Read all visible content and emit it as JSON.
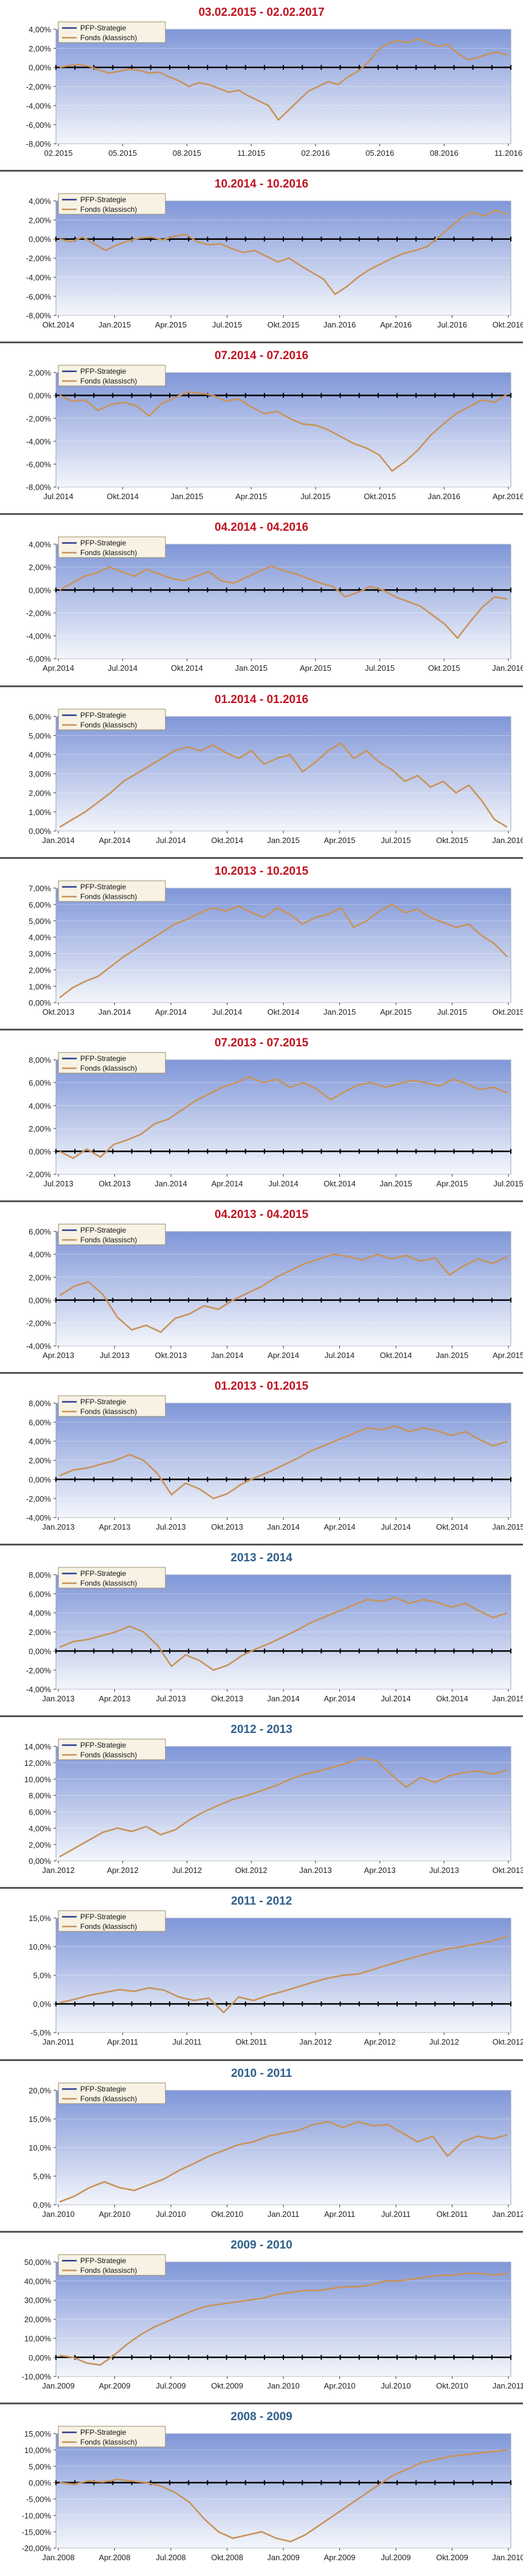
{
  "colors": {
    "title_red": "#c0121f",
    "title_blue": "#2e5f8a",
    "plot_top": "#7f96d8",
    "plot_bottom": "#f4f6fb",
    "series_strategy": "#2c3d8f",
    "series_fund": "#c8935a",
    "axis": "#000000",
    "separator": "#555555"
  },
  "chart_data": [
    {
      "type": "line",
      "title": "03.02.2015 - 02.02.2017",
      "title_color": "red",
      "y_labels": [
        "4,00%",
        "2,00%",
        "0,00%",
        "-2,00%",
        "-4,00%",
        "-6,00%",
        "-8,00%"
      ],
      "ylim": [
        -8,
        4
      ],
      "x_labels": [
        "02.2015",
        "05.2015",
        "08.2015",
        "11.2015",
        "02.2016",
        "05.2016",
        "08.2016",
        "11.2016"
      ],
      "legend": [
        "PFP-Strategie",
        "Fonds (klassisch)"
      ],
      "legend_position": "top-left",
      "series": [
        {
          "name": "Fonds (klassisch)",
          "values": [
            0,
            0.2,
            0.3,
            0.1,
            -0.3,
            -0.6,
            -0.4,
            -0.2,
            -0.3,
            -0.6,
            -0.5,
            -1,
            -1.4,
            -2,
            -1.6,
            -1.8,
            -2.2,
            -2.6,
            -2.4,
            -3,
            -3.5,
            -4,
            -5.5,
            -4.5,
            -3.5,
            -2.5,
            -2,
            -1.5,
            -1.8,
            -1,
            -0.4,
            0.5,
            1.8,
            2.5,
            2.8,
            2.6,
            3,
            2.6,
            2.2,
            2.4,
            1.5,
            0.8,
            1,
            1.4,
            1.6,
            1.3
          ]
        }
      ]
    },
    {
      "type": "line",
      "title": "10.2014 - 10.2016",
      "title_color": "red",
      "y_labels": [
        "4,00%",
        "2,00%",
        "0,00%",
        "-2,00%",
        "-4,00%",
        "-6,00%",
        "-8,00%"
      ],
      "ylim": [
        -8,
        4
      ],
      "x_labels": [
        "Okt.2014",
        "Jan.2015",
        "Apr.2015",
        "Jul.2015",
        "Okt.2015",
        "Jan.2016",
        "Apr.2016",
        "Jul.2016",
        "Okt.2016"
      ],
      "legend": [
        "PFP-Strategie",
        "Fonds (klassisch)"
      ],
      "legend_position": "top-left",
      "series": [
        {
          "name": "Fonds (klassisch)",
          "values": [
            0,
            -0.3,
            0.2,
            -0.5,
            -1.2,
            -0.6,
            -0.2,
            0.1,
            0.2,
            -0.1,
            0.3,
            0.5,
            -0.3,
            -0.6,
            -0.5,
            -1,
            -1.4,
            -1.2,
            -1.8,
            -2.4,
            -2,
            -2.8,
            -3.5,
            -4.2,
            -5.8,
            -5,
            -4,
            -3.2,
            -2.6,
            -2,
            -1.5,
            -1.2,
            -0.8,
            0.2,
            1.2,
            2.2,
            2.8,
            2.4,
            3,
            2.6
          ]
        }
      ]
    },
    {
      "type": "line",
      "title": "07.2014 - 07.2016",
      "title_color": "red",
      "y_labels": [
        "2,00%",
        "0,00%",
        "-2,00%",
        "-4,00%",
        "-6,00%",
        "-8,00%"
      ],
      "ylim": [
        -8,
        2
      ],
      "x_labels": [
        "Jul.2014",
        "Okt.2014",
        "Jan.2015",
        "Apr.2015",
        "Jul.2015",
        "Okt.2015",
        "Jan.2016",
        "Apr.2016"
      ],
      "legend": [
        "PFP-Strategie",
        "Fonds (klassisch)"
      ],
      "legend_position": "top-left",
      "series": [
        {
          "name": "Fonds (klassisch)",
          "values": [
            0,
            -0.5,
            -0.4,
            -1.3,
            -0.8,
            -0.6,
            -0.9,
            -1.8,
            -0.7,
            -0.2,
            0.3,
            0.2,
            0,
            -0.5,
            -0.3,
            -1,
            -1.6,
            -1.4,
            -2,
            -2.5,
            -2.6,
            -3,
            -3.6,
            -4.2,
            -4.6,
            -5.2,
            -6.6,
            -5.8,
            -4.8,
            -3.5,
            -2.5,
            -1.6,
            -1,
            -0.4,
            -0.6,
            0.1
          ]
        }
      ]
    },
    {
      "type": "line",
      "title": "04.2014 - 04.2016",
      "title_color": "red",
      "y_labels": [
        "4,00%",
        "2,00%",
        "0,00%",
        "-2,00%",
        "-4,00%",
        "-6,00%"
      ],
      "ylim": [
        -6,
        4
      ],
      "x_labels": [
        "Apr.2014",
        "Jul.2014",
        "Okt.2014",
        "Jan.2015",
        "Apr.2015",
        "Jul.2015",
        "Okt.2015",
        "Jan.2016"
      ],
      "legend": [
        "PFP-Strategie",
        "Fonds (klassisch)"
      ],
      "legend_position": "top-left",
      "series": [
        {
          "name": "Fonds (klassisch)",
          "values": [
            0,
            0.6,
            1.2,
            1.5,
            2,
            1.6,
            1.2,
            1.8,
            1.4,
            1,
            0.8,
            1.2,
            1.6,
            0.8,
            0.6,
            1.1,
            1.6,
            2.1,
            1.7,
            1.4,
            1,
            0.6,
            0.3,
            -0.6,
            -0.2,
            0.3,
            0,
            -0.6,
            -1,
            -1.4,
            -2.2,
            -3,
            -4.2,
            -2.8,
            -1.5,
            -0.6,
            -0.8
          ]
        }
      ]
    },
    {
      "type": "line",
      "title": "01.2014 - 01.2016",
      "title_color": "red",
      "y_labels": [
        "6,00%",
        "5,00%",
        "4,00%",
        "3,00%",
        "2,00%",
        "1,00%",
        "0,00%"
      ],
      "ylim": [
        0,
        6
      ],
      "x_labels": [
        "Jan.2014",
        "Apr.2014",
        "Jul.2014",
        "Okt.2014",
        "Jan.2015",
        "Apr.2015",
        "Jul.2015",
        "Okt.2015",
        "Jan.2016"
      ],
      "legend": [
        "PFP-Strategie",
        "Fonds (klassisch)"
      ],
      "legend_position": "top-left",
      "series": [
        {
          "name": "Fonds (klassisch)",
          "values": [
            0.2,
            0.6,
            1,
            1.5,
            2,
            2.6,
            3,
            3.4,
            3.8,
            4.2,
            4.4,
            4.2,
            4.5,
            4.1,
            3.8,
            4.2,
            3.5,
            3.8,
            4,
            3.1,
            3.6,
            4.2,
            4.6,
            3.8,
            4.2,
            3.6,
            3.2,
            2.6,
            2.9,
            2.3,
            2.6,
            2,
            2.4,
            1.6,
            0.6,
            0.2
          ]
        }
      ]
    },
    {
      "type": "line",
      "title": "10.2013 - 10.2015",
      "title_color": "red",
      "y_labels": [
        "7,00%",
        "6,00%",
        "5,00%",
        "4,00%",
        "3,00%",
        "2,00%",
        "1,00%",
        "0,00%"
      ],
      "ylim": [
        0,
        7
      ],
      "x_labels": [
        "Okt.2013",
        "Jan.2014",
        "Apr.2014",
        "Jul.2014",
        "Okt.2014",
        "Jan.2015",
        "Apr.2015",
        "Jul.2015",
        "Okt.2015"
      ],
      "legend": [
        "PFP-Strategie",
        "Fonds (klassisch)"
      ],
      "legend_position": "top-left",
      "series": [
        {
          "name": "Fonds (klassisch)",
          "values": [
            0.3,
            0.9,
            1.3,
            1.6,
            2.2,
            2.8,
            3.3,
            3.8,
            4.3,
            4.8,
            5.1,
            5.5,
            5.8,
            5.6,
            5.9,
            5.5,
            5.2,
            5.8,
            5.4,
            4.8,
            5.2,
            5.4,
            5.8,
            4.6,
            5,
            5.6,
            6,
            5.5,
            5.7,
            5.2,
            4.9,
            4.6,
            4.8,
            4.1,
            3.6,
            2.8
          ]
        }
      ]
    },
    {
      "type": "line",
      "title": "07.2013 - 07.2015",
      "title_color": "red",
      "y_labels": [
        "8,00%",
        "6,00%",
        "4,00%",
        "2,00%",
        "0,00%",
        "-2,00%"
      ],
      "ylim": [
        -2,
        8
      ],
      "x_labels": [
        "Jul.2013",
        "Okt.2013",
        "Jan.2014",
        "Apr.2014",
        "Jul.2014",
        "Okt.2014",
        "Jan.2015",
        "Apr.2015",
        "Jul.2015"
      ],
      "legend": [
        "PFP-Strategie",
        "Fonds (klassisch)"
      ],
      "legend_position": "top-left",
      "series": [
        {
          "name": "Fonds (klassisch)",
          "values": [
            0,
            -0.6,
            0.2,
            -0.5,
            0.6,
            1,
            1.5,
            2.4,
            2.8,
            3.6,
            4.4,
            5,
            5.6,
            6,
            6.5,
            6,
            6.3,
            5.6,
            6,
            5.4,
            4.5,
            5.2,
            5.8,
            6,
            5.6,
            5.9,
            6.2,
            6,
            5.7,
            6.3,
            5.9,
            5.4,
            5.6,
            5.1
          ]
        }
      ]
    },
    {
      "type": "line",
      "title": "04.2013 - 04.2015",
      "title_color": "red",
      "y_labels": [
        "6,00%",
        "4,00%",
        "2,00%",
        "0,00%",
        "-2,00%",
        "-4,00%"
      ],
      "ylim": [
        -4,
        6
      ],
      "x_labels": [
        "Apr.2013",
        "Jul.2013",
        "Okt.2013",
        "Jan.2014",
        "Apr.2014",
        "Jul.2014",
        "Okt.2014",
        "Jan.2015",
        "Apr.2015"
      ],
      "legend": [
        "PFP-Strategie",
        "Fonds (klassisch)"
      ],
      "legend_position": "top-left",
      "series": [
        {
          "name": "Fonds (klassisch)",
          "values": [
            0.4,
            1.2,
            1.6,
            0.5,
            -1.5,
            -2.6,
            -2.2,
            -2.8,
            -1.6,
            -1.2,
            -0.5,
            -0.8,
            0,
            0.6,
            1.2,
            2,
            2.6,
            3.2,
            3.6,
            4,
            3.8,
            3.5,
            4,
            3.6,
            3.9,
            3.4,
            3.7,
            2.2,
            3,
            3.6,
            3.2,
            3.8
          ]
        }
      ]
    },
    {
      "type": "line",
      "title": "01.2013 - 01.2015",
      "title_color": "red",
      "y_labels": [
        "8,00%",
        "6,00%",
        "4,00%",
        "2,00%",
        "0,00%",
        "-2,00%",
        "-4,00%"
      ],
      "ylim": [
        -4,
        8
      ],
      "x_labels": [
        "Jan.2013",
        "Apr.2013",
        "Jul.2013",
        "Okt.2013",
        "Jan.2014",
        "Apr.2014",
        "Jul.2014",
        "Okt.2014",
        "Jan.2015"
      ],
      "legend": [
        "PFP-Strategie",
        "Fonds (klassisch)"
      ],
      "legend_position": "top-left",
      "series": [
        {
          "name": "Fonds (klassisch)",
          "values": [
            0.4,
            1,
            1.2,
            1.6,
            2,
            2.6,
            2,
            0.6,
            -1.6,
            -0.4,
            -1,
            -2,
            -1.5,
            -0.5,
            0.2,
            0.8,
            1.5,
            2.2,
            3,
            3.6,
            4.2,
            4.8,
            5.4,
            5.2,
            5.6,
            5,
            5.4,
            5.1,
            4.6,
            5,
            4.2,
            3.5,
            4
          ]
        }
      ]
    },
    {
      "type": "line",
      "title": "2013 - 2014",
      "title_color": "blue",
      "y_labels": [
        "8,00%",
        "6,00%",
        "4,00%",
        "2,00%",
        "0,00%",
        "-2,00%",
        "-4,00%"
      ],
      "ylim": [
        -4,
        8
      ],
      "x_labels": [
        "Jan.2013",
        "Apr.2013",
        "Jul.2013",
        "Okt.2013",
        "Jan.2014",
        "Apr.2014",
        "Jul.2014",
        "Okt.2014",
        "Jan.2015"
      ],
      "legend": [
        "PFP-Strategie",
        "Fonds (klassisch)"
      ],
      "legend_position": "top-left",
      "series": [
        {
          "name": "Fonds (klassisch)",
          "values": [
            0.4,
            1,
            1.2,
            1.6,
            2,
            2.6,
            2,
            0.6,
            -1.6,
            -0.4,
            -1,
            -2,
            -1.5,
            -0.5,
            0.2,
            0.8,
            1.5,
            2.2,
            3,
            3.6,
            4.2,
            4.8,
            5.4,
            5.2,
            5.6,
            5,
            5.4,
            5.1,
            4.6,
            5,
            4.2,
            3.5,
            4
          ]
        }
      ]
    },
    {
      "type": "line",
      "title": "2012 - 2013",
      "title_color": "blue",
      "y_labels": [
        "14,00%",
        "12,00%",
        "10,00%",
        "8,00%",
        "6,00%",
        "4,00%",
        "2,00%",
        "0,00%"
      ],
      "ylim": [
        0,
        14
      ],
      "x_labels": [
        "Jan.2012",
        "Apr.2012",
        "Jul.2012",
        "Okt.2012",
        "Jan.2013",
        "Apr.2013",
        "Jul.2013",
        "Okt.2013"
      ],
      "legend": [
        "PFP-Strategie",
        "Fonds (klassisch)"
      ],
      "legend_position": "top-left",
      "series": [
        {
          "name": "Fonds (klassisch)",
          "values": [
            0.5,
            1.5,
            2.5,
            3.5,
            4,
            3.6,
            4.2,
            3.2,
            3.8,
            5,
            6,
            6.8,
            7.5,
            8,
            8.6,
            9.2,
            10,
            10.6,
            11,
            11.5,
            12,
            12.6,
            12.2,
            10.5,
            9,
            10.2,
            9.6,
            10.4,
            10.8,
            11,
            10.6,
            11.1
          ]
        }
      ]
    },
    {
      "type": "line",
      "title": "2011 - 2012",
      "title_color": "blue",
      "y_labels": [
        "15,0%",
        "10,0%",
        "5,0%",
        "0,0%",
        "-5,0%"
      ],
      "ylim": [
        -5,
        15
      ],
      "x_labels": [
        "Jan.2011",
        "Apr.2011",
        "Jul.2011",
        "Okt.2011",
        "Jan.2012",
        "Apr.2012",
        "Jul.2012",
        "Okt.2012"
      ],
      "legend": [
        "PFP-Strategie",
        "Fonds (klassisch)"
      ],
      "legend_position": "top-left",
      "series": [
        {
          "name": "Fonds (klassisch)",
          "values": [
            0.2,
            0.8,
            1.5,
            2,
            2.5,
            2.2,
            2.8,
            2.4,
            1.2,
            0.6,
            1,
            -1.5,
            1.2,
            0.6,
            1.5,
            2.2,
            3,
            3.8,
            4.5,
            5,
            5.2,
            6,
            6.8,
            7.6,
            8.3,
            9,
            9.6,
            10,
            10.5,
            11,
            11.8
          ]
        }
      ]
    },
    {
      "type": "line",
      "title": "2010 - 2011",
      "title_color": "blue",
      "y_labels": [
        "20,0%",
        "15,0%",
        "10,0%",
        "5,0%",
        "0,0%"
      ],
      "ylim": [
        0,
        20
      ],
      "x_labels": [
        "Jan.2010",
        "Apr.2010",
        "Jul.2010",
        "Okt.2010",
        "Jan.2011",
        "Apr.2011",
        "Jul.2011",
        "Okt.2011",
        "Jan.2012"
      ],
      "legend": [
        "PFP-Strategie",
        "Fonds (klassisch)"
      ],
      "legend_position": "top-left",
      "series": [
        {
          "name": "Fonds (klassisch)",
          "values": [
            0.5,
            1.5,
            3,
            4,
            3,
            2.5,
            3.5,
            4.5,
            6,
            7.2,
            8.5,
            9.5,
            10.5,
            11,
            12,
            12.5,
            13,
            14,
            14.5,
            13.5,
            14.5,
            13.8,
            14,
            12.5,
            11,
            12,
            8.5,
            11,
            12,
            11.5,
            12.2
          ]
        }
      ]
    },
    {
      "type": "line",
      "title": "2009 - 2010",
      "title_color": "blue",
      "y_labels": [
        "50,00%",
        "40,00%",
        "30,00%",
        "20,00%",
        "10,00%",
        "0,00%",
        "-10,00%"
      ],
      "ylim": [
        -10,
        50
      ],
      "x_labels": [
        "Jan.2009",
        "Apr.2009",
        "Jul.2009",
        "Okt.2009",
        "Jan.2010",
        "Apr.2010",
        "Jul.2010",
        "Okt.2010",
        "Jan.2011"
      ],
      "legend": [
        "PFP-Strategie",
        "Fonds (klassisch)"
      ],
      "legend_position": "top-left",
      "series": [
        {
          "name": "Fonds (klassisch)",
          "values": [
            1,
            0,
            -3,
            -4,
            1,
            7,
            12,
            16,
            19,
            22,
            25,
            27,
            28,
            29,
            30,
            31,
            33,
            34,
            35,
            35,
            36,
            37,
            37,
            38,
            40,
            40,
            41,
            42,
            43,
            43,
            44,
            44,
            43,
            44
          ]
        }
      ]
    },
    {
      "type": "line",
      "title": "2008 - 2009",
      "title_color": "blue",
      "y_labels": [
        "15,00%",
        "10,00%",
        "5,00%",
        "0,00%",
        "-5,00%",
        "-10,00%",
        "-15,00%",
        "-20,00%"
      ],
      "ylim": [
        -20,
        15
      ],
      "x_labels": [
        "Jan.2008",
        "Apr.2008",
        "Jul.2008",
        "Okt.2008",
        "Jan.2009",
        "Apr.2009",
        "Jul.2009",
        "Okt.2009",
        "Jan.2010"
      ],
      "legend": [
        "PFP-Strategie",
        "Fonds (klassisch)"
      ],
      "legend_position": "top-left",
      "series": [
        {
          "name": "Fonds (klassisch)",
          "values": [
            0,
            -0.5,
            0.5,
            0.2,
            1,
            0.5,
            0,
            -1,
            -3,
            -6,
            -11,
            -15,
            -17,
            -16,
            -15,
            -17,
            -18,
            -16,
            -13,
            -10,
            -7,
            -4,
            -1,
            2,
            4,
            6,
            7,
            8,
            8.5,
            9,
            9.5,
            10
          ]
        }
      ]
    }
  ]
}
